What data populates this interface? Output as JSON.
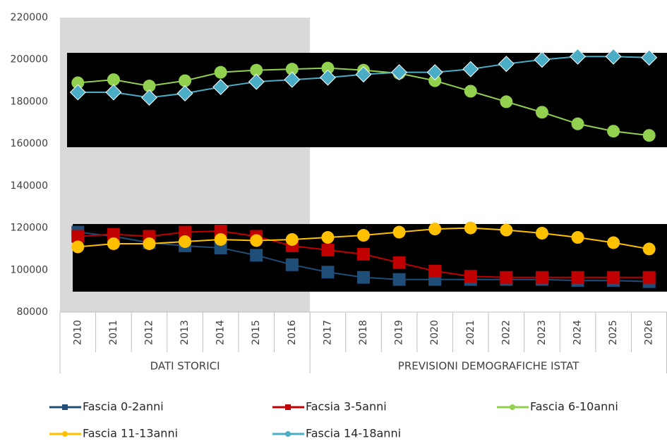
{
  "chart_data": {
    "type": "line",
    "categories": [
      "2010",
      "2011",
      "2012",
      "2013",
      "2014",
      "2015",
      "2016",
      "2017",
      "2018",
      "2019",
      "2020",
      "2021",
      "2022",
      "2023",
      "2024",
      "2025",
      "2026"
    ],
    "groups": [
      {
        "label": "DATI STORICI",
        "count": 7
      },
      {
        "label": "PREVISIONI DEMOGRAFICHE ISTAT",
        "count": 10
      }
    ],
    "shaded_group": 0,
    "ylim": [
      80000,
      220000
    ],
    "yticks": [
      80000,
      100000,
      120000,
      140000,
      160000,
      180000,
      200000,
      220000
    ],
    "grid": false,
    "legend": "bottom",
    "series": [
      {
        "name": "Fascia 0-2anni",
        "color": "#1f4e79",
        "marker": "square",
        "values": [
          118000,
          116000,
          113000,
          111500,
          110500,
          107000,
          102500,
          99000,
          96500,
          95500,
          95500,
          95500,
          95500,
          95500,
          95000,
          95000,
          94500
        ]
      },
      {
        "name": "Facsia 3-5anni",
        "color": "#c00000",
        "marker": "square",
        "values": [
          116000,
          117000,
          116000,
          118000,
          118500,
          116000,
          111500,
          109500,
          107500,
          103500,
          99500,
          97000,
          96500,
          96500,
          96500,
          96500,
          96500
        ]
      },
      {
        "name": "Fascia 6-10anni",
        "color": "#92d050",
        "marker": "circle",
        "values": [
          189000,
          190500,
          187500,
          190000,
          194000,
          195000,
          195500,
          196000,
          195000,
          193500,
          190000,
          185000,
          180000,
          175000,
          169500,
          166000,
          164000
        ]
      },
      {
        "name": "Fascia 11-13anni",
        "color": "#ffc000",
        "marker": "circle",
        "values": [
          111000,
          112500,
          112500,
          113500,
          114500,
          114000,
          114500,
          115500,
          116500,
          118000,
          119500,
          120000,
          119000,
          117500,
          115500,
          113000,
          110000
        ]
      },
      {
        "name": "Fascia 14-18anni",
        "color": "#4bacc6",
        "marker": "diamond",
        "values": [
          184500,
          184500,
          182000,
          184000,
          187000,
          189500,
          190500,
          191500,
          193000,
          194000,
          194000,
          195500,
          198000,
          200000,
          201500,
          201500,
          201000
        ]
      }
    ]
  }
}
